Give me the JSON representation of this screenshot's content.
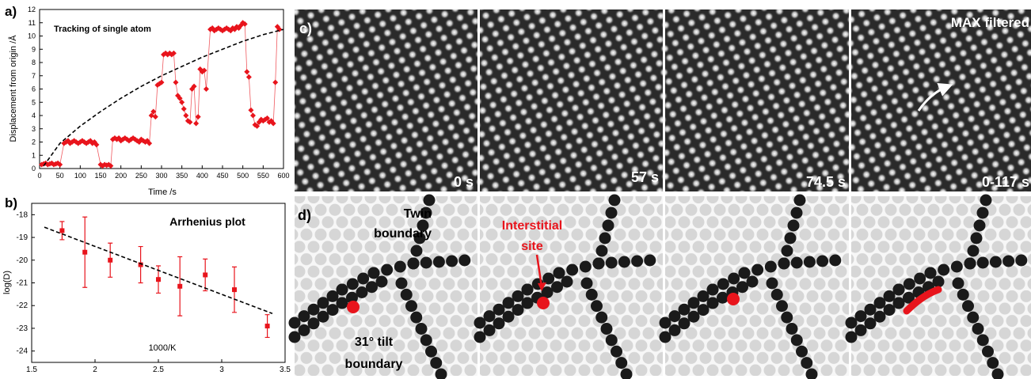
{
  "chart_data": [
    {
      "type": "scatter",
      "label": "a)",
      "title": "Tracking of single atom",
      "x_label": "Time /s",
      "y_label": "Displacement from origin /Å",
      "xlim": [
        0,
        600
      ],
      "ylim": [
        0,
        12
      ],
      "xticks": [
        0,
        50,
        100,
        150,
        200,
        250,
        300,
        350,
        400,
        450,
        500,
        550,
        600
      ],
      "yticks": [
        0,
        1,
        2,
        3,
        4,
        5,
        6,
        7,
        8,
        9,
        10,
        11,
        12
      ],
      "series": [
        {
          "color": "#e8141c",
          "marker": "diamond",
          "connect": true,
          "x": [
            5,
            10,
            15,
            20,
            25,
            30,
            35,
            40,
            45,
            50,
            60,
            65,
            70,
            75,
            80,
            85,
            90,
            95,
            100,
            105,
            110,
            115,
            120,
            125,
            130,
            135,
            140,
            150,
            155,
            160,
            165,
            170,
            175,
            180,
            185,
            190,
            195,
            200,
            205,
            210,
            215,
            220,
            225,
            230,
            235,
            240,
            245,
            250,
            255,
            260,
            265,
            270,
            275,
            280,
            285,
            290,
            295,
            300,
            305,
            310,
            315,
            320,
            325,
            330,
            335,
            340,
            345,
            350,
            355,
            360,
            365,
            370,
            375,
            380,
            385,
            390,
            395,
            400,
            405,
            410,
            420,
            425,
            430,
            435,
            440,
            445,
            450,
            455,
            460,
            465,
            470,
            475,
            480,
            485,
            490,
            495,
            500,
            505,
            510,
            515,
            520,
            525,
            530,
            535,
            540,
            545,
            550,
            555,
            560,
            565,
            570,
            575,
            580,
            585,
            590
          ],
          "values": [
            0.3,
            0.35,
            0.4,
            0.3,
            0.35,
            0.4,
            0.3,
            0.35,
            0.4,
            0.3,
            1.9,
            2.0,
            2.1,
            1.9,
            2.0,
            2.1,
            2.0,
            1.9,
            2.0,
            2.1,
            2.0,
            1.9,
            2.0,
            2.1,
            1.9,
            2.0,
            1.8,
            0.3,
            0.2,
            0.3,
            0.25,
            0.3,
            0.2,
            2.2,
            2.3,
            2.2,
            2.3,
            2.1,
            2.2,
            2.3,
            2.2,
            2.1,
            2.2,
            2.3,
            2.2,
            2.1,
            2.0,
            2.2,
            2.1,
            2.0,
            2.1,
            1.9,
            4.0,
            4.3,
            3.9,
            6.3,
            6.4,
            6.5,
            8.6,
            8.7,
            8.6,
            8.7,
            8.6,
            8.7,
            6.5,
            5.5,
            5.3,
            5.0,
            4.5,
            4.0,
            3.6,
            3.5,
            6.0,
            6.2,
            3.4,
            3.9,
            7.5,
            7.3,
            7.4,
            6.0,
            10.5,
            10.6,
            10.4,
            10.5,
            10.6,
            10.5,
            10.4,
            10.5,
            10.6,
            10.5,
            10.4,
            10.6,
            10.5,
            10.7,
            10.6,
            10.8,
            11.0,
            10.9,
            7.3,
            6.9,
            4.4,
            4.0,
            3.3,
            3.2,
            3.5,
            3.7,
            3.6,
            3.7,
            3.8,
            3.5,
            3.6,
            3.4,
            6.5,
            10.7,
            10.5
          ]
        },
        {
          "color": "#000000",
          "dashed": true,
          "x": [
            10,
            50,
            100,
            150,
            200,
            250,
            300,
            350,
            400,
            450,
            500,
            550,
            600
          ],
          "values": [
            0.2,
            1.9,
            3.2,
            4.3,
            5.3,
            6.2,
            7.0,
            7.7,
            8.4,
            9.0,
            9.6,
            10.1,
            10.5
          ]
        }
      ]
    },
    {
      "type": "scatter",
      "label": "b)",
      "title": "Arrhenius plot",
      "x_label": "1000/K",
      "y_label": "log(D)",
      "xlim": [
        1.5,
        3.5
      ],
      "ylim": [
        -24.5,
        -17.5
      ],
      "xticks": [
        1.5,
        2,
        2.5,
        3,
        3.5
      ],
      "yticks": [
        -18,
        -19,
        -20,
        -21,
        -22,
        -23,
        -24
      ],
      "series": [
        {
          "color": "#e8141c",
          "marker": "square",
          "x": [
            1.74,
            1.92,
            2.12,
            2.36,
            2.5,
            2.67,
            2.87,
            3.1,
            3.36
          ],
          "values": [
            -18.7,
            -19.65,
            -20.0,
            -20.2,
            -20.85,
            -21.15,
            -20.65,
            -21.3,
            -22.9
          ],
          "errors": [
            0.4,
            1.55,
            0.75,
            0.8,
            0.6,
            1.3,
            0.7,
            1.0,
            0.5
          ]
        },
        {
          "color": "#000000",
          "dashed": true,
          "x": [
            1.6,
            3.4
          ],
          "values": [
            -18.55,
            -22.35
          ]
        }
      ]
    }
  ],
  "images": {
    "top": {
      "label": "c)",
      "times": [
        "0 s",
        "57 s",
        "74.5 s",
        "0-117 s"
      ],
      "note": "MAX filtered"
    },
    "bottom": {
      "label": "d)",
      "twin": [
        "Twin",
        "boundary"
      ],
      "interstitial": [
        "Interstitial",
        "site"
      ],
      "tilt": [
        "31° tilt",
        "boundary"
      ]
    }
  }
}
